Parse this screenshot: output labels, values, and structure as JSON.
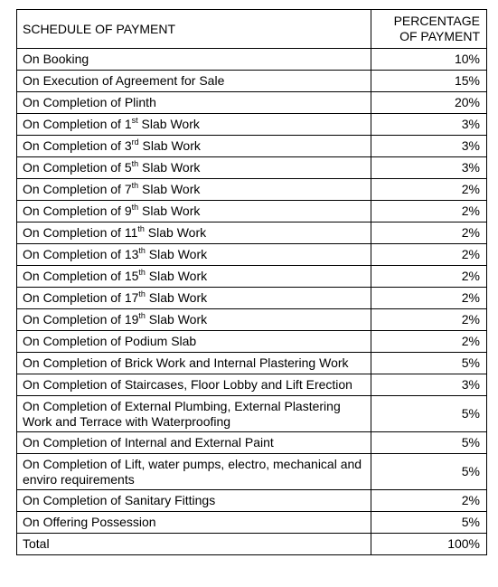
{
  "header": {
    "schedule": "SCHEDULE OF PAYMENT",
    "percentage_line1": "PERCENTAGE",
    "percentage_line2": "OF PAYMENT"
  },
  "rows": [
    {
      "pre": "On Booking",
      "pct": "10%"
    },
    {
      "pre": "On Execution of Agreement for Sale",
      "pct": "15%"
    },
    {
      "pre": "On Completion of Plinth",
      "pct": "20%"
    },
    {
      "pre": "On Completion of 1",
      "sup": "st",
      "post": " Slab Work",
      "pct": "3%"
    },
    {
      "pre": "On Completion of 3",
      "sup": "rd",
      "post": " Slab Work",
      "pct": "3%"
    },
    {
      "pre": "On Completion of 5",
      "sup": "th",
      "post": " Slab Work",
      "pct": "3%"
    },
    {
      "pre": "On Completion of 7",
      "sup": "th",
      "post": " Slab Work",
      "pct": "2%"
    },
    {
      "pre": "On Completion of 9",
      "sup": "th",
      "post": " Slab Work",
      "pct": "2%"
    },
    {
      "pre": "On Completion of 11",
      "sup": "th",
      "post": " Slab Work",
      "pct": "2%"
    },
    {
      "pre": "On Completion of 13",
      "sup": "th",
      "post": " Slab Work",
      "pct": "2%"
    },
    {
      "pre": "On Completion of 15",
      "sup": "th",
      "post": " Slab Work",
      "pct": "2%"
    },
    {
      "pre": "On Completion of 17",
      "sup": "th",
      "post": " Slab Work",
      "pct": "2%"
    },
    {
      "pre": "On Completion of 19",
      "sup": "th",
      "post": " Slab Work",
      "pct": "2%"
    },
    {
      "pre": "On Completion of Podium Slab",
      "pct": "2%"
    },
    {
      "pre": "On Completion of Brick Work and Internal Plastering Work",
      "pct": "5%"
    },
    {
      "pre": "On Completion of Staircases, Floor Lobby and Lift Erection",
      "pct": "3%"
    },
    {
      "pre": "On Completion of External Plumbing, External Plastering Work and Terrace with Waterproofing",
      "pct": "5%",
      "tall": true
    },
    {
      "pre": "On Completion of Internal and External Paint",
      "pct": "5%"
    },
    {
      "pre": "On Completion of Lift, water pumps, electro, mechanical and enviro requirements",
      "pct": "5%",
      "tall": true
    },
    {
      "pre": "On Completion of Sanitary Fittings",
      "pct": "2%"
    },
    {
      "pre": "On Offering Possession",
      "pct": "5%"
    },
    {
      "pre": "Total",
      "pct": "100%"
    }
  ]
}
